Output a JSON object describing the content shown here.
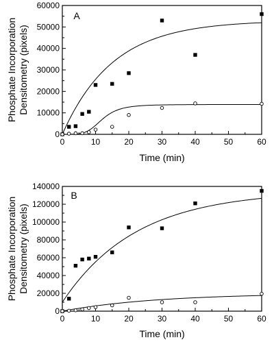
{
  "chart_data": [
    {
      "type": "scatter",
      "panel_label": "A",
      "xlabel": "Time (min)",
      "ylabel_lines": [
        "Phosphate Incorporation",
        "Densitometry (pixels)"
      ],
      "xlim": [
        0,
        60
      ],
      "ylim": [
        0,
        60000
      ],
      "xticks": [
        0,
        10,
        20,
        30,
        40,
        50,
        60
      ],
      "xtick_labels": [
        "0",
        "10",
        "20",
        "30",
        "40",
        "50",
        "60"
      ],
      "yticks": [
        0,
        10000,
        20000,
        30000,
        40000,
        50000,
        60000
      ],
      "ytick_labels": [
        "0",
        "10000",
        "20000",
        "30000",
        "40000",
        "50000",
        "60000"
      ],
      "series": [
        {
          "marker": "filled-square",
          "x": [
            0,
            2,
            4,
            6,
            8,
            10,
            15,
            20,
            30,
            40,
            60
          ],
          "y": [
            0,
            3500,
            3800,
            9500,
            10500,
            23000,
            23500,
            28500,
            53000,
            37000,
            56000
          ],
          "fit": {
            "type": "saturation",
            "vmax": 53000,
            "k": 0.066
          }
        },
        {
          "marker": "open-circle",
          "x": [
            0,
            2,
            4,
            6,
            8,
            10,
            15,
            20,
            30,
            40,
            60
          ],
          "y": [
            0,
            300,
            500,
            500,
            1000,
            2200,
            3500,
            9000,
            12300,
            14400,
            14200
          ],
          "fit": {
            "type": "sigmoid",
            "vmax": 13900,
            "t50": 12,
            "slope": 4.6
          }
        }
      ]
    },
    {
      "type": "scatter",
      "panel_label": "B",
      "xlabel": "Time (min)",
      "ylabel_lines": [
        "Phosphate Incorporation",
        "Densitometry (pixels)"
      ],
      "xlim": [
        0,
        60
      ],
      "ylim": [
        0,
        140000
      ],
      "xticks": [
        0,
        10,
        20,
        30,
        40,
        50,
        60
      ],
      "xtick_labels": [
        "0",
        "10",
        "20",
        "30",
        "40",
        "50",
        "60"
      ],
      "yticks": [
        0,
        20000,
        40000,
        60000,
        80000,
        100000,
        120000,
        140000
      ],
      "ytick_labels": [
        "0",
        "20000",
        "40000",
        "60000",
        "80000",
        "100000",
        "120000",
        "140000"
      ],
      "series": [
        {
          "marker": "filled-square",
          "x": [
            0,
            2,
            4,
            6,
            8,
            10,
            15,
            20,
            30,
            40,
            60
          ],
          "y": [
            0,
            14000,
            51000,
            58000,
            59000,
            61000,
            66000,
            94000,
            93000,
            121000,
            135000
          ],
          "fit": {
            "type": "saturation",
            "vmax": 135000,
            "k": 0.045,
            "y0": 10000
          }
        },
        {
          "marker": "open-circle",
          "x": [
            0,
            2,
            4,
            6,
            8,
            10,
            15,
            20,
            30,
            40,
            60
          ],
          "y": [
            0,
            500,
            1000,
            2000,
            3500,
            4500,
            6500,
            15000,
            10000,
            10000,
            19500
          ],
          "fit": {
            "type": "saturation",
            "vmax": 20000,
            "k": 0.035
          }
        }
      ]
    }
  ]
}
